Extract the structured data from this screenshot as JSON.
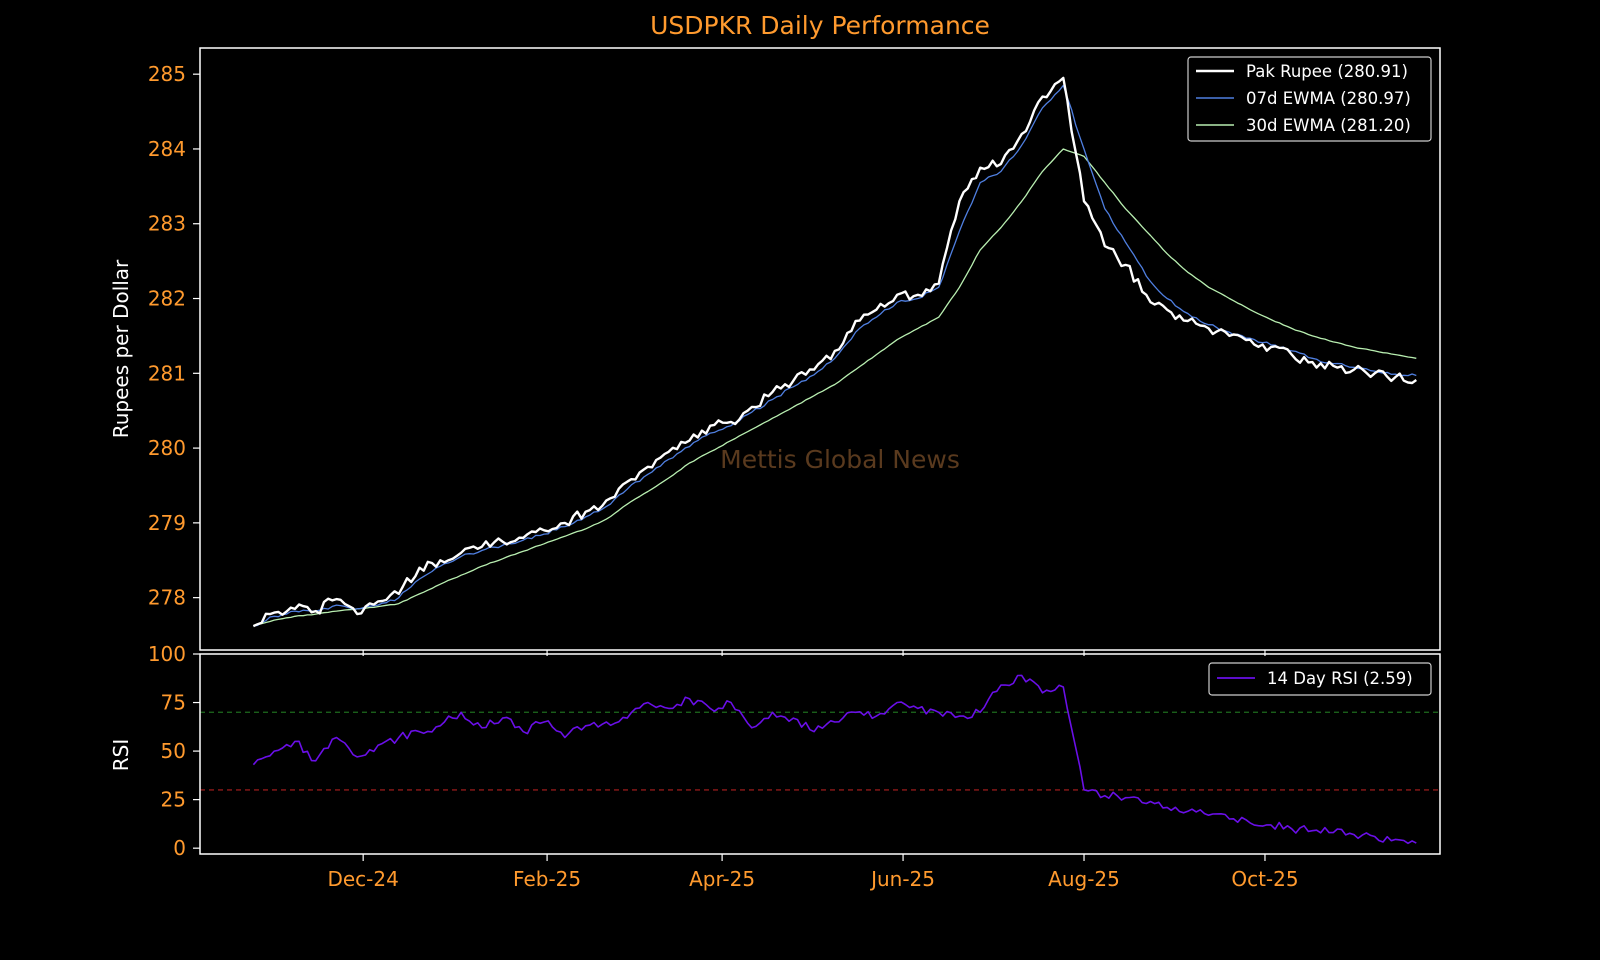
{
  "chart_data": [
    {
      "panel": "price",
      "type": "line",
      "title": "USDPKR Daily Performance",
      "ylabel": "Rupees per Dollar",
      "ylim": [
        277.3,
        285.35
      ],
      "yticks": [
        278,
        279,
        280,
        281,
        282,
        283,
        284,
        285
      ],
      "xlim": [
        "2024-10-07",
        "2025-11-29"
      ],
      "xticks": [
        {
          "date": "2024-12-01",
          "label": "Dec-24"
        },
        {
          "date": "2025-02-01",
          "label": "Feb-25"
        },
        {
          "date": "2025-04-01",
          "label": "Apr-25"
        },
        {
          "date": "2025-06-01",
          "label": "Jun-25"
        },
        {
          "date": "2025-08-01",
          "label": "Aug-25"
        },
        {
          "date": "2025-10-01",
          "label": "Oct-25"
        }
      ],
      "watermark": "Mettis Global News",
      "legend_position": "top-right",
      "x": [
        "2024-10-25",
        "2024-11-01",
        "2024-11-08",
        "2024-11-15",
        "2024-11-22",
        "2024-11-29",
        "2024-12-06",
        "2024-12-13",
        "2024-12-20",
        "2024-12-27",
        "2025-01-03",
        "2025-01-10",
        "2025-01-17",
        "2025-01-24",
        "2025-01-31",
        "2025-02-07",
        "2025-02-14",
        "2025-02-21",
        "2025-02-28",
        "2025-03-07",
        "2025-03-14",
        "2025-03-21",
        "2025-03-28",
        "2025-04-04",
        "2025-04-11",
        "2025-04-18",
        "2025-04-25",
        "2025-05-02",
        "2025-05-09",
        "2025-05-16",
        "2025-05-23",
        "2025-05-30",
        "2025-06-06",
        "2025-06-13",
        "2025-06-20",
        "2025-06-27",
        "2025-07-04",
        "2025-07-11",
        "2025-07-18",
        "2025-07-25",
        "2025-08-01",
        "2025-08-08",
        "2025-08-15",
        "2025-08-22",
        "2025-08-29",
        "2025-09-05",
        "2025-09-12",
        "2025-09-19",
        "2025-09-26",
        "2025-10-03",
        "2025-10-10",
        "2025-10-17",
        "2025-10-24",
        "2025-10-31",
        "2025-11-07",
        "2025-11-14",
        "2025-11-21"
      ],
      "series": [
        {
          "name": "Pak Rupee (280.91)",
          "color": "#ffffff",
          "values": [
            277.62,
            277.8,
            277.85,
            277.82,
            277.98,
            277.78,
            277.95,
            278.05,
            278.4,
            278.5,
            278.6,
            278.68,
            278.75,
            278.8,
            278.9,
            279.0,
            279.15,
            279.3,
            279.55,
            279.75,
            279.95,
            280.1,
            280.3,
            280.35,
            280.55,
            280.75,
            280.9,
            281.05,
            281.3,
            281.7,
            281.85,
            282.05,
            282.05,
            282.2,
            283.3,
            283.75,
            283.8,
            284.2,
            284.7,
            284.95,
            283.3,
            282.7,
            282.45,
            282.05,
            281.85,
            281.7,
            281.6,
            281.5,
            281.45,
            281.35,
            281.25,
            281.15,
            281.1,
            281.05,
            281.0,
            280.95,
            280.91
          ]
        },
        {
          "name": "07d EWMA (280.97)",
          "color": "#4f7fe0",
          "values": [
            277.62,
            277.75,
            277.82,
            277.82,
            277.9,
            277.85,
            277.9,
            278.0,
            278.25,
            278.42,
            278.55,
            278.63,
            278.7,
            278.77,
            278.85,
            278.95,
            279.08,
            279.22,
            279.45,
            279.65,
            279.85,
            280.02,
            280.2,
            280.3,
            280.48,
            280.65,
            280.82,
            280.98,
            281.2,
            281.55,
            281.75,
            281.95,
            282.0,
            282.15,
            282.9,
            283.55,
            283.7,
            284.05,
            284.55,
            284.85,
            284.0,
            283.2,
            282.75,
            282.3,
            282.0,
            281.8,
            281.65,
            281.55,
            281.47,
            281.38,
            281.3,
            281.2,
            281.13,
            281.08,
            281.03,
            280.99,
            280.97
          ]
        },
        {
          "name": "30d EWMA (281.20)",
          "color": "#b8eeb0",
          "values": [
            277.62,
            277.7,
            277.75,
            277.78,
            277.82,
            277.85,
            277.88,
            277.92,
            278.05,
            278.18,
            278.3,
            278.42,
            278.52,
            278.62,
            278.72,
            278.82,
            278.92,
            279.05,
            279.25,
            279.42,
            279.6,
            279.8,
            279.95,
            280.1,
            280.25,
            280.4,
            280.55,
            280.7,
            280.85,
            281.05,
            281.25,
            281.45,
            281.6,
            281.75,
            282.15,
            282.65,
            282.95,
            283.3,
            283.7,
            284.0,
            283.9,
            283.55,
            283.2,
            282.9,
            282.6,
            282.35,
            282.15,
            282.0,
            281.85,
            281.72,
            281.6,
            281.5,
            281.42,
            281.35,
            281.3,
            281.25,
            281.2
          ]
        }
      ]
    },
    {
      "panel": "rsi",
      "type": "line",
      "ylabel": "RSI",
      "ylim": [
        -3,
        100
      ],
      "yticks": [
        0,
        25,
        50,
        75,
        100
      ],
      "reference_lines": [
        {
          "y": 70,
          "color": "#1e6b1e",
          "style": "dashed"
        },
        {
          "y": 30,
          "color": "#b01f1f",
          "style": "dashed"
        }
      ],
      "legend_position": "top-right",
      "x": [
        "2024-10-25",
        "2024-11-01",
        "2024-11-08",
        "2024-11-15",
        "2024-11-22",
        "2024-11-29",
        "2024-12-06",
        "2024-12-13",
        "2024-12-20",
        "2024-12-27",
        "2025-01-03",
        "2025-01-10",
        "2025-01-17",
        "2025-01-24",
        "2025-01-31",
        "2025-02-07",
        "2025-02-14",
        "2025-02-21",
        "2025-02-28",
        "2025-03-07",
        "2025-03-14",
        "2025-03-21",
        "2025-03-28",
        "2025-04-04",
        "2025-04-11",
        "2025-04-18",
        "2025-04-25",
        "2025-05-02",
        "2025-05-09",
        "2025-05-16",
        "2025-05-23",
        "2025-05-30",
        "2025-06-06",
        "2025-06-13",
        "2025-06-20",
        "2025-06-27",
        "2025-07-04",
        "2025-07-11",
        "2025-07-18",
        "2025-07-25",
        "2025-08-01",
        "2025-08-08",
        "2025-08-15",
        "2025-08-22",
        "2025-08-29",
        "2025-09-05",
        "2025-09-12",
        "2025-09-19",
        "2025-09-26",
        "2025-10-03",
        "2025-10-10",
        "2025-10-17",
        "2025-10-24",
        "2025-10-31",
        "2025-11-07",
        "2025-11-14",
        "2025-11-21"
      ],
      "series": [
        {
          "name": "14 Day RSI (2.59)",
          "color": "#6a0fe8",
          "values": [
            43,
            50,
            55,
            45,
            57,
            47,
            53,
            57,
            60,
            63,
            70,
            62,
            67,
            60,
            65,
            57,
            63,
            65,
            67,
            75,
            72,
            77,
            72,
            75,
            62,
            70,
            67,
            60,
            65,
            70,
            68,
            75,
            72,
            70,
            68,
            70,
            84,
            89,
            80,
            83,
            30,
            27,
            26,
            23,
            21,
            19,
            17,
            15,
            13,
            12,
            10,
            9,
            8,
            7,
            6,
            4.5,
            2.59
          ]
        }
      ]
    }
  ]
}
